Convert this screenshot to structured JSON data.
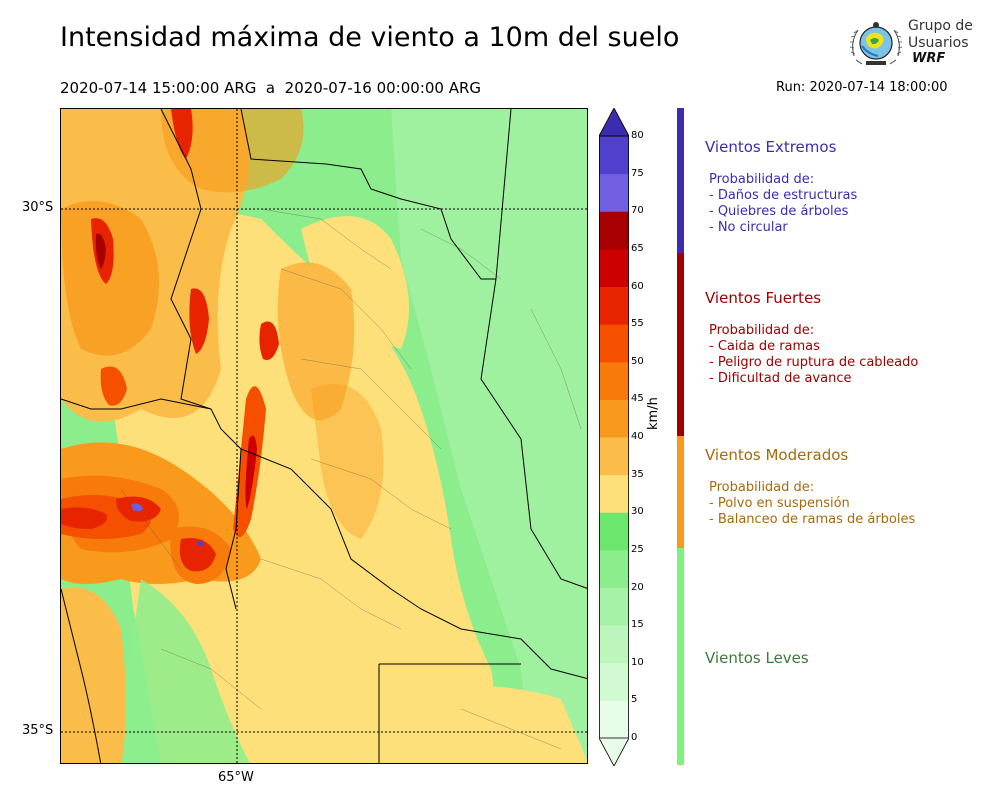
{
  "header": {
    "title": "Intensidad máxima de viento a 10m del suelo",
    "period": "2020-07-14 15:00:00 ARG  a  2020-07-16 00:00:00 ARG",
    "run": "Run: 2020-07-14 18:00:00"
  },
  "logo": {
    "line1": "Grupo de",
    "line2": "Usuarios",
    "line3": "WRF"
  },
  "map": {
    "lat_labels": [
      "30°S",
      "35°S"
    ],
    "lon_labels": [
      "65°W"
    ]
  },
  "colorbar": {
    "unit": "km/h",
    "ticks": [
      "0",
      "5",
      "10",
      "15",
      "20",
      "25",
      "30",
      "35",
      "40",
      "45",
      "50",
      "55",
      "60",
      "65",
      "70",
      "75",
      "80"
    ],
    "colors": [
      "#e8fde8",
      "#d2fad2",
      "#bdf6bd",
      "#a6f2a6",
      "#8ced8c",
      "#6de66d",
      "#fde07a",
      "#fbbd4a",
      "#f99a1c",
      "#f77a0a",
      "#f55000",
      "#e82400",
      "#cc0000",
      "#a80000",
      "#7060e0",
      "#5040cc",
      "#3c2cb0"
    ],
    "extend_color": "#3c2cb0"
  },
  "legend": {
    "categories": [
      {
        "title": "Vientos Extremos",
        "color": "#3c2cb0",
        "desc": [
          "Probabilidad de:",
          "- Daños de estructuras",
          "- Quiebres de árboles",
          "- No circular"
        ]
      },
      {
        "title": "Vientos Fuertes",
        "color": "#a00000",
        "desc": [
          "Probabilidad de:",
          "- Caida de ramas",
          "- Peligro de ruptura de cableado",
          "- Dificultad de avance"
        ]
      },
      {
        "title": "Vientos Moderados",
        "color": "#a86a0a",
        "bar_color": "#f99a1c",
        "desc": [
          "Probabilidad de:",
          "- Polvo en suspensión",
          "- Balanceo de ramas de árboles"
        ]
      },
      {
        "title": "Vientos Leves",
        "color": "#3a7a3a",
        "bar_color": "#7df27d",
        "desc": []
      }
    ]
  }
}
